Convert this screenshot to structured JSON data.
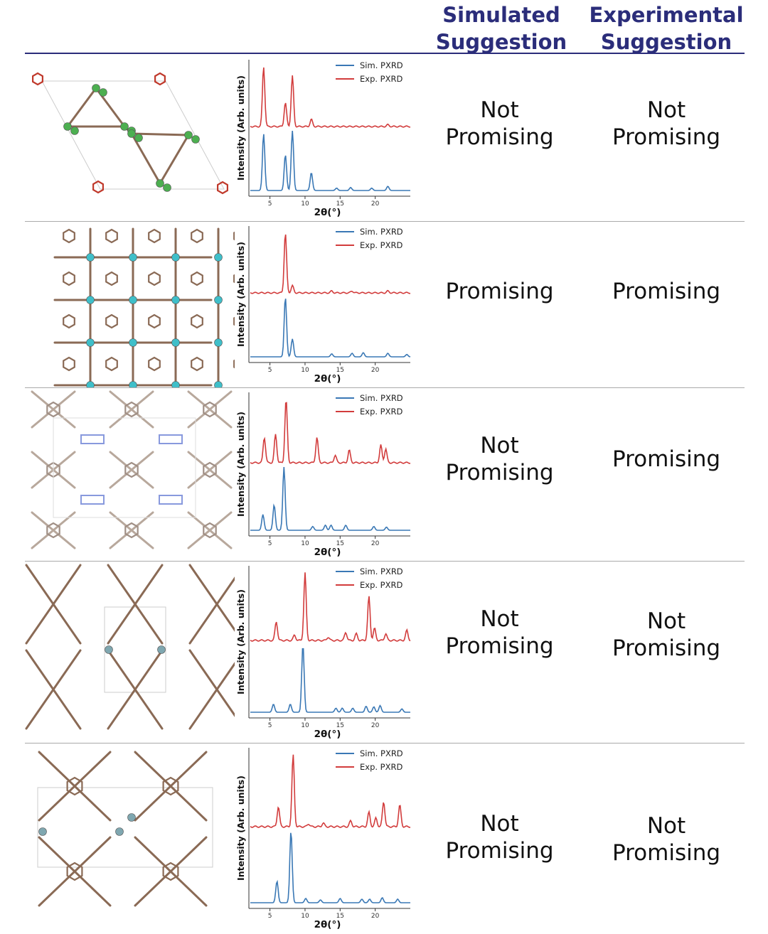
{
  "header": {
    "simulated": [
      "Simulated",
      "Suggestion"
    ],
    "experimental": [
      "Experimental",
      "Suggestion"
    ]
  },
  "plot_common": {
    "ylabel": "Intensity (Arb. units)",
    "xlabel": "2θ(°)",
    "legend": [
      "Sim. PXRD",
      "Exp. PXRD"
    ],
    "xticks": [
      5,
      10,
      15,
      20
    ],
    "sim_color": "#3a78b5",
    "exp_color": "#d23c3c"
  },
  "rows": [
    {
      "simulated": [
        "Not",
        "Promising"
      ],
      "experimental": [
        "Not",
        "Promising"
      ]
    },
    {
      "simulated": [
        "Promising"
      ],
      "experimental": [
        "Promising"
      ]
    },
    {
      "simulated": [
        "Not",
        "Promising"
      ],
      "experimental": [
        "Promising"
      ]
    },
    {
      "simulated": [
        "Not",
        "Promising"
      ],
      "experimental": [
        "Not",
        "Promising"
      ]
    },
    {
      "simulated": [
        "Not",
        "Promising"
      ],
      "experimental": [
        "Not",
        "Promising"
      ]
    }
  ],
  "chart_data": [
    {
      "type": "line",
      "xlabel": "2θ(°)",
      "ylabel": "Intensity (Arb. units)",
      "xlim": [
        2,
        25
      ],
      "series": [
        {
          "name": "Sim. PXRD",
          "peaks": [
            [
              4.1,
              0.95
            ],
            [
              7.2,
              0.6
            ],
            [
              8.2,
              1.0
            ],
            [
              10.9,
              0.3
            ],
            [
              14.5,
              0.04
            ],
            [
              16.5,
              0.05
            ],
            [
              19.5,
              0.04
            ],
            [
              21.8,
              0.07
            ]
          ]
        },
        {
          "name": "Exp. PXRD",
          "peaks": [
            [
              4.1,
              1.0
            ],
            [
              7.2,
              0.4
            ],
            [
              8.2,
              0.85
            ],
            [
              10.9,
              0.12
            ],
            [
              21.8,
              0.03
            ]
          ]
        }
      ]
    },
    {
      "type": "line",
      "xlabel": "2θ(°)",
      "ylabel": "Intensity (Arb. units)",
      "xlim": [
        2,
        25
      ],
      "series": [
        {
          "name": "Sim. PXRD",
          "peaks": [
            [
              7.2,
              1.0
            ],
            [
              8.2,
              0.3
            ],
            [
              13.8,
              0.05
            ],
            [
              16.7,
              0.06
            ],
            [
              18.3,
              0.07
            ],
            [
              21.8,
              0.06
            ],
            [
              24.5,
              0.04
            ]
          ]
        },
        {
          "name": "Exp. PXRD",
          "peaks": [
            [
              7.2,
              1.0
            ],
            [
              8.2,
              0.12
            ],
            [
              13.8,
              0.03
            ],
            [
              16.7,
              0.03
            ],
            [
              21.8,
              0.03
            ]
          ]
        }
      ]
    },
    {
      "type": "line",
      "xlabel": "2θ(°)",
      "ylabel": "Intensity (Arb. units)",
      "xlim": [
        2,
        25
      ],
      "series": [
        {
          "name": "Sim. PXRD",
          "peaks": [
            [
              4.0,
              0.25
            ],
            [
              5.6,
              0.4
            ],
            [
              7.0,
              1.0
            ],
            [
              11.1,
              0.06
            ],
            [
              12.9,
              0.08
            ],
            [
              13.7,
              0.08
            ],
            [
              15.8,
              0.08
            ],
            [
              19.8,
              0.06
            ],
            [
              21.6,
              0.05
            ]
          ]
        },
        {
          "name": "Exp. PXRD",
          "peaks": [
            [
              4.2,
              0.4
            ],
            [
              5.8,
              0.45
            ],
            [
              7.3,
              1.0
            ],
            [
              11.7,
              0.4
            ],
            [
              14.3,
              0.12
            ],
            [
              16.3,
              0.2
            ],
            [
              20.8,
              0.28
            ],
            [
              21.5,
              0.22
            ]
          ]
        }
      ]
    },
    {
      "type": "line",
      "xlabel": "2θ(°)",
      "ylabel": "Intensity (Arb. units)",
      "xlim": [
        2,
        25
      ],
      "series": [
        {
          "name": "Sim. PXRD",
          "peaks": [
            [
              5.5,
              0.12
            ],
            [
              7.9,
              0.12
            ],
            [
              9.7,
              1.0
            ],
            [
              14.4,
              0.06
            ],
            [
              15.3,
              0.06
            ],
            [
              16.8,
              0.06
            ],
            [
              18.7,
              0.09
            ],
            [
              19.8,
              0.08
            ],
            [
              20.7,
              0.1
            ],
            [
              23.8,
              0.05
            ]
          ]
        },
        {
          "name": "Exp. PXRD",
          "peaks": [
            [
              5.9,
              0.28
            ],
            [
              8.5,
              0.08
            ],
            [
              10.0,
              1.0
            ],
            [
              13.3,
              0.05
            ],
            [
              15.8,
              0.12
            ],
            [
              17.3,
              0.1
            ],
            [
              19.1,
              0.65
            ],
            [
              19.9,
              0.18
            ],
            [
              21.5,
              0.1
            ],
            [
              24.5,
              0.15
            ]
          ]
        }
      ]
    },
    {
      "type": "line",
      "xlabel": "2θ(°)",
      "ylabel": "Intensity (Arb. units)",
      "xlim": [
        2,
        25
      ],
      "series": [
        {
          "name": "Sim. PXRD",
          "peaks": [
            [
              6.0,
              0.3
            ],
            [
              8.0,
              1.0
            ],
            [
              10.1,
              0.06
            ],
            [
              12.2,
              0.04
            ],
            [
              15.0,
              0.06
            ],
            [
              18.1,
              0.05
            ],
            [
              19.2,
              0.05
            ],
            [
              21.0,
              0.07
            ],
            [
              23.2,
              0.05
            ]
          ]
        },
        {
          "name": "Exp. PXRD",
          "peaks": [
            [
              6.2,
              0.28
            ],
            [
              8.3,
              1.0
            ],
            [
              10.5,
              0.04
            ],
            [
              12.6,
              0.05
            ],
            [
              16.5,
              0.08
            ],
            [
              19.1,
              0.2
            ],
            [
              20.1,
              0.12
            ],
            [
              21.2,
              0.35
            ],
            [
              23.5,
              0.3
            ]
          ]
        }
      ]
    }
  ]
}
